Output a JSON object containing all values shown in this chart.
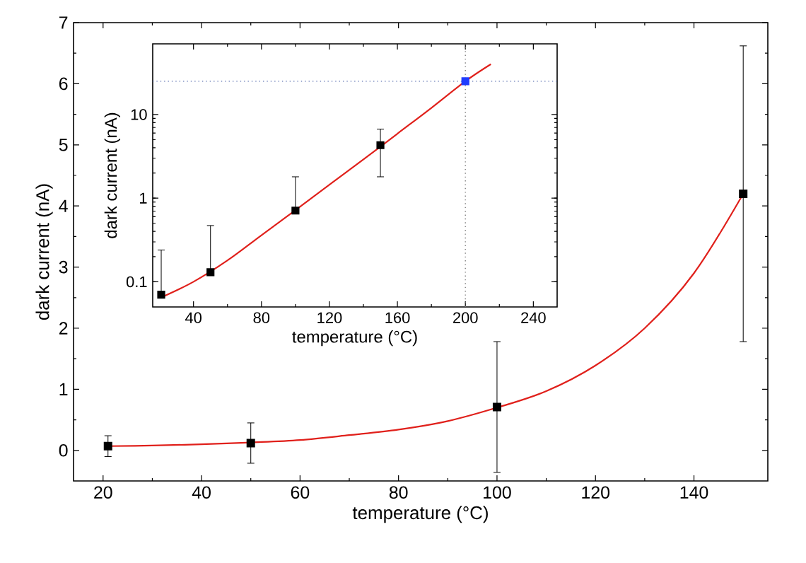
{
  "chart_data": [
    {
      "type": "scatter",
      "xlabel": "temperature (°C)",
      "ylabel": "dark current (nA)",
      "xlim": [
        14,
        155
      ],
      "ylim": [
        -0.5,
        7
      ],
      "xticks": [
        20,
        40,
        60,
        80,
        100,
        120,
        140
      ],
      "yticks": [
        0,
        1,
        2,
        3,
        4,
        5,
        6,
        7
      ],
      "series": [
        {
          "type": "scatter",
          "marker": "square",
          "color": "#000000",
          "x": [
            21,
            50,
            100,
            150
          ],
          "values": [
            0.07,
            0.12,
            0.71,
            4.2
          ],
          "errors": [
            0.17,
            0.33,
            1.07,
            2.42
          ]
        },
        {
          "type": "line",
          "marker": "none",
          "line_style": "solid",
          "color": "#e0201b",
          "x": [
            21,
            30,
            40,
            50,
            60,
            70,
            80,
            90,
            100,
            110,
            120,
            130,
            140,
            150
          ],
          "values": [
            0.07,
            0.08,
            0.1,
            0.13,
            0.17,
            0.25,
            0.34,
            0.48,
            0.7,
            0.97,
            1.39,
            2.0,
            2.9,
            4.2
          ]
        }
      ]
    },
    {
      "type": "scatter",
      "xlabel": "temperature (°C)",
      "ylabel": "dark current (nA)",
      "log": "y",
      "xlim": [
        16,
        254
      ],
      "ylim": [
        0.05,
        70
      ],
      "xticks": [
        40,
        80,
        120,
        160,
        200,
        240
      ],
      "yticks": [
        0.1,
        1,
        10
      ],
      "series": [
        {
          "type": "line",
          "marker": "none",
          "line_style": "solid",
          "color": "#e0201b",
          "x": [
            21,
            40,
            60,
            80,
            100,
            120,
            140,
            160,
            180,
            200,
            215
          ],
          "values": [
            0.065,
            0.1,
            0.18,
            0.36,
            0.72,
            1.45,
            2.9,
            5.9,
            12,
            25,
            40
          ]
        },
        {
          "type": "scatter",
          "marker": "square",
          "color": "#000000",
          "x": [
            21,
            50,
            100,
            150
          ],
          "values": [
            0.07,
            0.13,
            0.71,
            4.3
          ],
          "errors": [
            [
              0.07,
              0.24
            ],
            [
              0.13,
              0.47
            ],
            [
              0.71,
              1.8
            ],
            [
              1.8,
              6.7
            ]
          ]
        },
        {
          "type": "scatter",
          "marker": "square",
          "color": "#1f3cff",
          "x": [
            200
          ],
          "values": [
            25
          ]
        }
      ],
      "ref_lines": [
        {
          "axis": "y",
          "value": 25,
          "color": "#5a6fb0",
          "line_style": "dotted"
        },
        {
          "axis": "x",
          "value": 200,
          "color": "#808080",
          "line_style": "dotted"
        }
      ]
    }
  ]
}
